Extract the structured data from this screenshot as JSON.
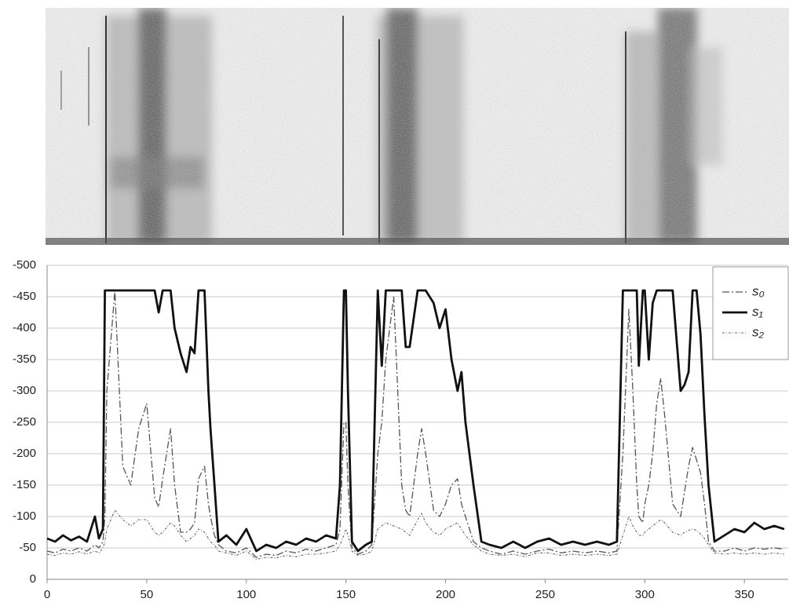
{
  "chart_data": {
    "type": "line",
    "x": [
      0,
      4,
      8,
      12,
      16,
      20,
      24,
      26,
      28,
      29,
      30,
      34,
      38,
      42,
      46,
      50,
      54,
      56,
      58,
      62,
      64,
      67,
      70,
      72,
      74,
      76,
      79,
      81,
      82,
      84,
      86,
      90,
      95,
      100,
      105,
      110,
      115,
      120,
      125,
      130,
      135,
      140,
      145,
      147,
      149,
      150,
      151,
      153,
      156,
      160,
      163,
      166,
      168,
      170,
      174,
      178,
      180,
      182,
      186,
      188,
      190,
      194,
      197,
      200,
      203,
      206,
      208,
      210,
      214,
      218,
      222,
      228,
      234,
      240,
      246,
      252,
      258,
      264,
      270,
      276,
      282,
      286,
      289,
      292,
      294,
      296,
      297,
      299,
      300,
      302,
      304,
      306,
      308,
      310,
      314,
      318,
      320,
      322,
      324,
      326,
      328,
      330,
      332,
      335,
      340,
      345,
      350,
      355,
      360,
      365,
      370
    ],
    "series": [
      {
        "name": "s₀",
        "color": "#555555",
        "values": [
          -45,
          -42,
          -48,
          -45,
          -50,
          -45,
          -55,
          -50,
          -60,
          -100,
          -300,
          -460,
          -180,
          -150,
          -240,
          -280,
          -130,
          -115,
          -160,
          -240,
          -150,
          -75,
          -75,
          -80,
          -90,
          -160,
          -180,
          -120,
          -100,
          -70,
          -55,
          -45,
          -42,
          -50,
          -35,
          -40,
          -38,
          -45,
          -42,
          -48,
          -45,
          -50,
          -55,
          -80,
          -250,
          -250,
          -150,
          -50,
          -40,
          -45,
          -55,
          -200,
          -250,
          -350,
          -450,
          -150,
          -110,
          -100,
          -200,
          -240,
          -200,
          -110,
          -100,
          -120,
          -150,
          -160,
          -120,
          -100,
          -60,
          -50,
          -45,
          -40,
          -45,
          -40,
          -45,
          -48,
          -42,
          -45,
          -42,
          -45,
          -42,
          -45,
          -200,
          -430,
          -300,
          -150,
          -100,
          -90,
          -120,
          -150,
          -200,
          -280,
          -320,
          -260,
          -120,
          -100,
          -140,
          -180,
          -210,
          -190,
          -170,
          -120,
          -60,
          -45,
          -45,
          -50,
          -45,
          -50,
          -48,
          -50,
          -48
        ]
      },
      {
        "name": "s₁",
        "color": "#111111",
        "values": [
          -65,
          -60,
          -70,
          -62,
          -68,
          -60,
          -100,
          -65,
          -80,
          -460,
          -460,
          -460,
          -460,
          -460,
          -460,
          -460,
          -460,
          -425,
          -460,
          -460,
          -400,
          -360,
          -330,
          -370,
          -360,
          -460,
          -460,
          -300,
          -240,
          -150,
          -60,
          -70,
          -55,
          -80,
          -45,
          -55,
          -50,
          -60,
          -55,
          -65,
          -60,
          -70,
          -65,
          -150,
          -460,
          -460,
          -300,
          -60,
          -45,
          -55,
          -60,
          -460,
          -340,
          -460,
          -460,
          -460,
          -370,
          -370,
          -460,
          -460,
          -460,
          -440,
          -400,
          -430,
          -350,
          -300,
          -330,
          -250,
          -150,
          -60,
          -55,
          -50,
          -60,
          -50,
          -60,
          -65,
          -55,
          -60,
          -55,
          -60,
          -55,
          -60,
          -460,
          -460,
          -460,
          -460,
          -340,
          -460,
          -460,
          -350,
          -440,
          -460,
          -460,
          -460,
          -460,
          -300,
          -310,
          -330,
          -460,
          -460,
          -390,
          -260,
          -150,
          -60,
          -70,
          -80,
          -75,
          -90,
          -80,
          -85,
          -80
        ]
      },
      {
        "name": "s₂",
        "color": "#666666",
        "values": [
          -40,
          -38,
          -42,
          -40,
          -44,
          -40,
          -45,
          -42,
          -50,
          -60,
          -80,
          -110,
          -95,
          -85,
          -95,
          -95,
          -75,
          -70,
          -75,
          -90,
          -85,
          -70,
          -60,
          -65,
          -70,
          -80,
          -75,
          -65,
          -60,
          -55,
          -45,
          -42,
          -38,
          -45,
          -32,
          -35,
          -34,
          -38,
          -36,
          -40,
          -40,
          -42,
          -45,
          -55,
          -70,
          -80,
          -70,
          -45,
          -38,
          -40,
          -45,
          -80,
          -85,
          -90,
          -85,
          -80,
          -75,
          -70,
          -95,
          -105,
          -90,
          -75,
          -70,
          -80,
          -85,
          -90,
          -80,
          -70,
          -55,
          -45,
          -40,
          -38,
          -40,
          -36,
          -42,
          -42,
          -38,
          -40,
          -38,
          -40,
          -38,
          -40,
          -70,
          -100,
          -85,
          -75,
          -70,
          -70,
          -75,
          -80,
          -85,
          -90,
          -95,
          -90,
          -75,
          -70,
          -75,
          -78,
          -80,
          -78,
          -72,
          -65,
          -55,
          -42,
          -40,
          -42,
          -40,
          -42,
          -40,
          -42,
          -40
        ]
      }
    ],
    "xlim": [
      0,
      372
    ],
    "xticks": [
      0,
      50,
      100,
      150,
      200,
      250,
      300,
      350
    ],
    "ylim": [
      0,
      -500
    ],
    "yticks": [
      -500,
      -450,
      -400,
      -350,
      -300,
      -250,
      -200,
      -150,
      -100,
      -50,
      0
    ],
    "grid": true,
    "legend": "upper right"
  }
}
